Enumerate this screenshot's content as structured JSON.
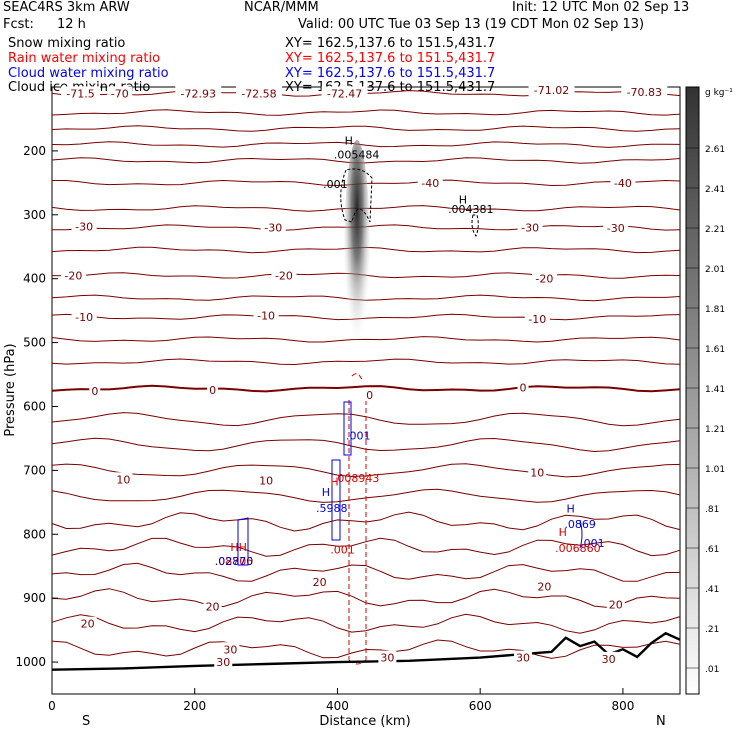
{
  "header": {
    "model": "SEAC4RS 3km ARW",
    "org": "NCAR/MMM",
    "init": "Init: 12 UTC Mon 02 Sep 13",
    "fcst_label": "Fcst:",
    "fcst_value": "12 h",
    "valid": "Valid: 00 UTC Tue 03 Sep 13 (19 CDT Mon 02 Sep 13)"
  },
  "fields": [
    {
      "label": "Snow mixing ratio",
      "xy": "XY= 162.5,137.6 to 151.5,431.7",
      "color": "#000000"
    },
    {
      "label": "Rain water mixing ratio",
      "xy": "XY= 162.5,137.6 to 151.5,431.7",
      "color": "#ff0000"
    },
    {
      "label": "Cloud water mixing ratio",
      "xy": "XY= 162.5,137.6 to 151.5,431.7",
      "color": "#0000ff"
    },
    {
      "label": "Cloud ice mixing ratio",
      "xy": "XY= 162.5,137.6 to 151.5,431.7",
      "color": "#000000"
    }
  ],
  "colors": {
    "temperature_contour": "#7a0000",
    "snow": "#000000",
    "rain": "#dd0000",
    "cloud_water": "#0000dd",
    "terrain": "#000000"
  },
  "chart_data": {
    "type": "contour",
    "xlabel": "Distance (km)",
    "ylabel": "Pressure (hPa)",
    "xlim": [
      0,
      880
    ],
    "ylim": [
      1050,
      100
    ],
    "x_ticks": [
      0,
      200,
      400,
      600,
      800
    ],
    "y_ticks": [
      200,
      300,
      400,
      500,
      600,
      700,
      800,
      900,
      1000
    ],
    "x_end_labels": {
      "left": "S",
      "right": "N"
    },
    "colorbar": {
      "unit": "g kg⁻¹",
      "labels": [
        "2.61",
        "2.41",
        "2.21",
        "2.01",
        "1.81",
        "1.61",
        "1.41",
        "1.21",
        "1.01",
        ".81",
        ".61",
        ".41",
        ".21",
        ".01"
      ]
    },
    "temperature_labels": [
      {
        "text": "-71.5",
        "x": 40,
        "p": 110
      },
      {
        "text": "-70",
        "x": 95,
        "p": 110
      },
      {
        "text": "-72.93",
        "x": 205,
        "p": 110
      },
      {
        "text": "-72.58",
        "x": 290,
        "p": 110
      },
      {
        "text": "-72.47",
        "x": 410,
        "p": 110
      },
      {
        "text": "-71.02",
        "x": 700,
        "p": 105
      },
      {
        "text": "-70.83",
        "x": 830,
        "p": 108
      },
      {
        "text": "-40",
        "x": 530,
        "p": 250
      },
      {
        "text": "-40",
        "x": 800,
        "p": 250
      },
      {
        "text": "-30",
        "x": 45,
        "p": 318
      },
      {
        "text": "-30",
        "x": 310,
        "p": 320
      },
      {
        "text": "-30",
        "x": 670,
        "p": 320
      },
      {
        "text": "-30",
        "x": 790,
        "p": 321
      },
      {
        "text": "-20",
        "x": 30,
        "p": 395
      },
      {
        "text": "-20",
        "x": 325,
        "p": 395
      },
      {
        "text": "-20",
        "x": 690,
        "p": 400
      },
      {
        "text": "-10",
        "x": 45,
        "p": 460
      },
      {
        "text": "-10",
        "x": 300,
        "p": 458
      },
      {
        "text": "-10",
        "x": 680,
        "p": 463
      },
      {
        "text": "0",
        "x": 60,
        "p": 576
      },
      {
        "text": "0",
        "x": 225,
        "p": 574
      },
      {
        "text": "0",
        "x": 445,
        "p": 582
      },
      {
        "text": "0",
        "x": 660,
        "p": 570
      },
      {
        "text": "10",
        "x": 100,
        "p": 714
      },
      {
        "text": "10",
        "x": 300,
        "p": 716
      },
      {
        "text": "10",
        "x": 680,
        "p": 703
      },
      {
        "text": "20",
        "x": 50,
        "p": 940
      },
      {
        "text": "20",
        "x": 225,
        "p": 913
      },
      {
        "text": "20",
        "x": 375,
        "p": 875
      },
      {
        "text": "20",
        "x": 690,
        "p": 882
      },
      {
        "text": "20",
        "x": 790,
        "p": 910
      },
      {
        "text": "30",
        "x": 240,
        "p": 1000
      },
      {
        "text": "30",
        "x": 250,
        "p": 980
      },
      {
        "text": "30",
        "x": 470,
        "p": 993
      },
      {
        "text": "30",
        "x": 660,
        "p": 993
      },
      {
        "text": "30",
        "x": 780,
        "p": 995
      }
    ],
    "extrema_labels": [
      {
        "text": "H",
        "x": 410,
        "p": 190,
        "color": "#000000"
      },
      {
        "text": ".005484",
        "x": 395,
        "p": 212,
        "color": "#000000"
      },
      {
        "text": ".001",
        "x": 380,
        "p": 258,
        "color": "#000000"
      },
      {
        "text": "H",
        "x": 570,
        "p": 282,
        "color": "#000000"
      },
      {
        "text": ".004381",
        "x": 555,
        "p": 297,
        "color": "#000000"
      },
      {
        "text": ".001",
        "x": 412,
        "p": 652,
        "color": "#0000dd"
      },
      {
        "text": ".008943",
        "x": 395,
        "p": 718,
        "color": "#dd0000"
      },
      {
        "text": "H",
        "x": 390,
        "p": 724,
        "color": "#dd0000"
      },
      {
        "text": "H",
        "x": 378,
        "p": 740,
        "color": "#0000dd"
      },
      {
        "text": ".5988",
        "x": 370,
        "p": 765,
        "color": "#0000dd"
      },
      {
        "text": ".001",
        "x": 390,
        "p": 830,
        "color": "#dd0000"
      },
      {
        "text": "H",
        "x": 721,
        "p": 766,
        "color": "#0000dd"
      },
      {
        "text": ".0869",
        "x": 718,
        "p": 790,
        "color": "#0000dd"
      },
      {
        "text": "H",
        "x": 710,
        "p": 803,
        "color": "#dd0000"
      },
      {
        "text": ".001",
        "x": 740,
        "p": 820,
        "color": "#0000dd"
      },
      {
        "text": ".006860",
        "x": 705,
        "p": 828,
        "color": "#dd0000"
      },
      {
        "text": "HH",
        "x": 250,
        "p": 826,
        "color": "#dd0000"
      },
      {
        "text": ".08705",
        "x": 228,
        "p": 848,
        "color": "#dd0000"
      },
      {
        "text": ".02870",
        "x": 228,
        "p": 848,
        "color": "#0000dd"
      }
    ]
  }
}
